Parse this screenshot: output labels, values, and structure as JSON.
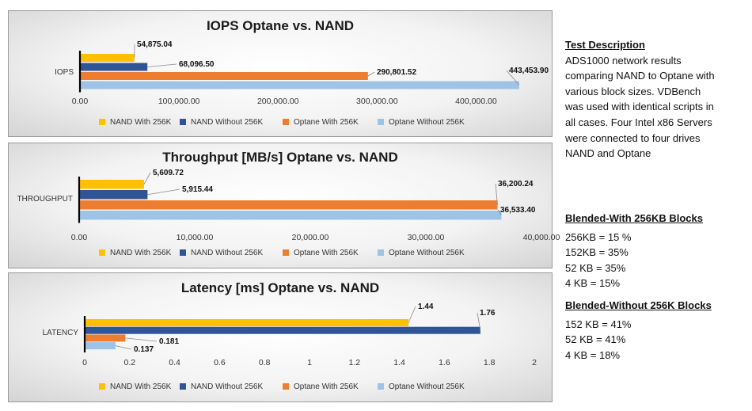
{
  "colors": {
    "nand_with": "#FFC000",
    "nand_without": "#2F5597",
    "optane_with": "#ED7D31",
    "optane_without": "#9DC3E6"
  },
  "legend": [
    "NAND With 256K",
    "NAND Without 256K",
    "Optane With 256K",
    "Optane Without 256K"
  ],
  "chart_data": [
    {
      "type": "bar",
      "orientation": "horizontal",
      "title": "IOPS Optane vs. NAND",
      "category": "IOPS",
      "series": [
        {
          "name": "NAND With 256K",
          "value": 54875.04,
          "label": "54,875.04"
        },
        {
          "name": "NAND Without 256K",
          "value": 68096.5,
          "label": "68,096.50"
        },
        {
          "name": "Optane With 256K",
          "value": 290801.52,
          "label": "290,801.52"
        },
        {
          "name": "Optane Without 256K",
          "value": 443453.9,
          "label": "443,453.90"
        }
      ],
      "xlim": [
        0,
        450000
      ],
      "ticks": [
        "0.00",
        "100,000.00",
        "200,000.00",
        "300,000.00",
        "400,000.00"
      ],
      "tick_values": [
        0,
        100000,
        200000,
        300000,
        400000
      ],
      "legend_position": "bottom",
      "grid": false
    },
    {
      "type": "bar",
      "orientation": "horizontal",
      "title": "Throughput [MB/s] Optane vs. NAND",
      "category": "THROUGHPUT",
      "series": [
        {
          "name": "NAND With 256K",
          "value": 5609.72,
          "label": "5,609.72"
        },
        {
          "name": "NAND Without 256K",
          "value": 5915.44,
          "label": "5,915.44"
        },
        {
          "name": "Optane With 256K",
          "value": 36200.24,
          "label": "36,200.24"
        },
        {
          "name": "Optane Without 256K",
          "value": 36533.4,
          "label": "36,533.40"
        }
      ],
      "xlim": [
        0,
        40000
      ],
      "ticks": [
        "0.00",
        "10,000.00",
        "20,000.00",
        "30,000.00",
        "40,000.00"
      ],
      "tick_values": [
        0,
        10000,
        20000,
        30000,
        40000
      ],
      "legend_position": "bottom",
      "grid": false
    },
    {
      "type": "bar",
      "orientation": "horizontal",
      "title": "Latency [ms] Optane vs. NAND",
      "category": "LATENCY",
      "series": [
        {
          "name": "NAND With 256K",
          "value": 1.44,
          "label": "1.44"
        },
        {
          "name": "NAND Without 256K",
          "value": 1.76,
          "label": "1.76"
        },
        {
          "name": "Optane With 256K",
          "value": 0.181,
          "label": "0.181"
        },
        {
          "name": "Optane Without 256K",
          "value": 0.137,
          "label": "0.137"
        }
      ],
      "xlim": [
        0,
        2
      ],
      "ticks": [
        "0",
        "0.2",
        "0.4",
        "0.6",
        "0.8",
        "1",
        "1.2",
        "1.4",
        "1.6",
        "1.8",
        "2"
      ],
      "tick_values": [
        0,
        0.2,
        0.4,
        0.6,
        0.8,
        1,
        1.2,
        1.4,
        1.6,
        1.8,
        2
      ],
      "legend_position": "bottom",
      "grid": false
    }
  ],
  "description": {
    "heading": "Test Description",
    "lines": [
      "ADS1000 network results",
      "comparing NAND to Optane with",
      "various block sizes.  VDBench",
      "was used with identical scripts in",
      "all cases.  Four Intel x86 Servers",
      "were connected to four drives",
      "NAND and Optane"
    ]
  },
  "blended_with": {
    "heading": "Blended-With 256KB Blocks",
    "lines": [
      "256KB = 15 %",
      "152KB = 35%",
      "52 KB = 35%",
      "4 KB = 15%"
    ]
  },
  "blended_without": {
    "heading": "Blended-Without 256K Blocks",
    "lines": [
      "152 KB = 41%",
      "52 KB = 41%",
      "4 KB = 18%"
    ]
  }
}
